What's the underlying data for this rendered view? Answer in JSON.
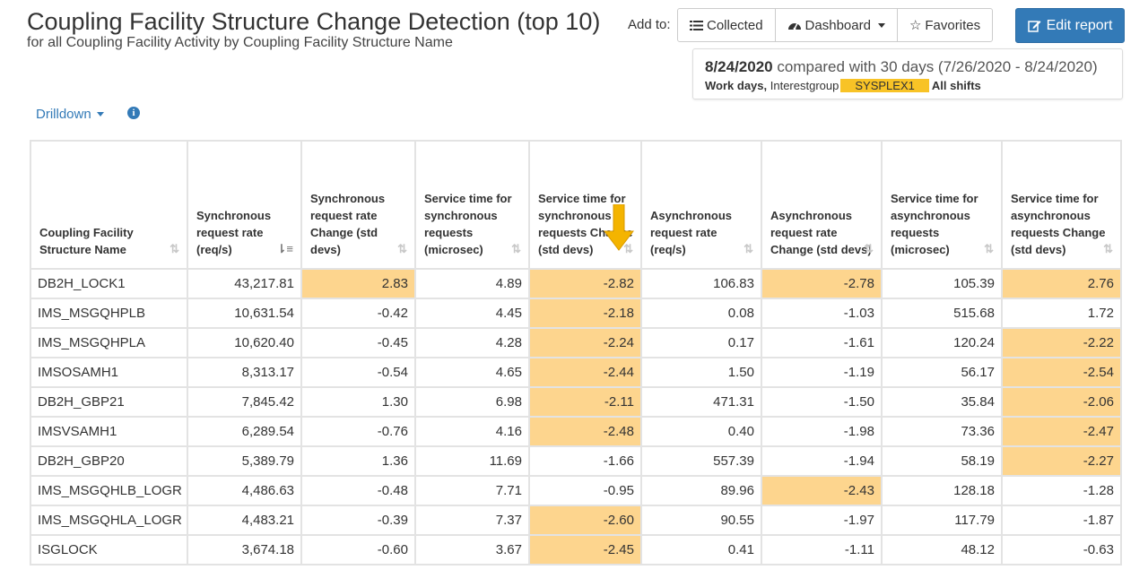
{
  "header": {
    "title": "Coupling Facility Structure Change Detection (top 10)",
    "subtitle": "for all Coupling Facility Activity by Coupling Facility Structure Name",
    "add_to_label": "Add to:",
    "collected_label": "Collected",
    "dashboard_label": "Dashboard",
    "favorites_label": "Favorites",
    "edit_report_label": "Edit report"
  },
  "compare": {
    "date": "8/24/2020",
    "compared_text": "compared with 30 days (7/26/2020 - 8/24/2020)",
    "work_days": "Work days,",
    "interestgroup": "Interestgroup",
    "sysplex": "SYSPLEX1",
    "shifts": "All shifts"
  },
  "drilldown_label": "Drilldown",
  "colors": {
    "accent": "#337ab7",
    "highlight": "#fdd58e",
    "sysplex_bg": "#f8c326",
    "arrow": "#f4b400"
  },
  "table": {
    "columns": [
      "Coupling Facility Structure Name",
      "Synchronous request rate (req/s)",
      "Synchronous request rate Change (std devs)",
      "Service time for synchronous requests (microsec)",
      "Service time for synchronous requests Change (std devs)",
      "Asynchronous request rate (req/s)",
      "Asynchronous request rate Change (std devs)",
      "Service time for asynchronous requests (microsec)",
      "Service time for asynchronous requests Change (std devs)"
    ],
    "rows": [
      [
        "DB2H_LOCK1",
        "43,217.81",
        "2.83",
        "4.89",
        "-2.82",
        "106.83",
        "-2.78",
        "105.39",
        "2.76"
      ],
      [
        "IMS_MSGQHPLB",
        "10,631.54",
        "-0.42",
        "4.45",
        "-2.18",
        "0.08",
        "-1.03",
        "515.68",
        "1.72"
      ],
      [
        "IMS_MSGQHPLA",
        "10,620.40",
        "-0.45",
        "4.28",
        "-2.24",
        "0.17",
        "-1.61",
        "120.24",
        "-2.22"
      ],
      [
        "IMSOSAMH1",
        "8,313.17",
        "-0.54",
        "4.65",
        "-2.44",
        "1.50",
        "-1.19",
        "56.17",
        "-2.54"
      ],
      [
        "DB2H_GBP21",
        "7,845.42",
        "1.30",
        "6.98",
        "-2.11",
        "471.31",
        "-1.50",
        "35.84",
        "-2.06"
      ],
      [
        "IMSVSAMH1",
        "6,289.54",
        "-0.76",
        "4.16",
        "-2.48",
        "0.40",
        "-1.98",
        "73.36",
        "-2.47"
      ],
      [
        "DB2H_GBP20",
        "5,389.79",
        "1.36",
        "11.69",
        "-1.66",
        "557.39",
        "-1.94",
        "58.19",
        "-2.27"
      ],
      [
        "IMS_MSGQHLB_LOGR",
        "4,486.63",
        "-0.48",
        "7.71",
        "-0.95",
        "89.96",
        "-2.43",
        "128.18",
        "-1.28"
      ],
      [
        "IMS_MSGQHLA_LOGR",
        "4,483.21",
        "-0.39",
        "7.37",
        "-2.60",
        "90.55",
        "-1.97",
        "117.79",
        "-1.87"
      ],
      [
        "ISGLOCK",
        "3,674.18",
        "-0.60",
        "3.67",
        "-2.45",
        "0.41",
        "-1.11",
        "48.12",
        "-0.63"
      ]
    ],
    "highlighted": [
      [
        false,
        false,
        true,
        false,
        true,
        false,
        true,
        false,
        true
      ],
      [
        false,
        false,
        false,
        false,
        true,
        false,
        false,
        false,
        false
      ],
      [
        false,
        false,
        false,
        false,
        true,
        false,
        false,
        false,
        true
      ],
      [
        false,
        false,
        false,
        false,
        true,
        false,
        false,
        false,
        true
      ],
      [
        false,
        false,
        false,
        false,
        true,
        false,
        false,
        false,
        true
      ],
      [
        false,
        false,
        false,
        false,
        true,
        false,
        false,
        false,
        true
      ],
      [
        false,
        false,
        false,
        false,
        false,
        false,
        false,
        false,
        true
      ],
      [
        false,
        false,
        false,
        false,
        false,
        false,
        true,
        false,
        false
      ],
      [
        false,
        false,
        false,
        false,
        true,
        false,
        false,
        false,
        false
      ],
      [
        false,
        false,
        false,
        false,
        true,
        false,
        false,
        false,
        false
      ]
    ]
  }
}
